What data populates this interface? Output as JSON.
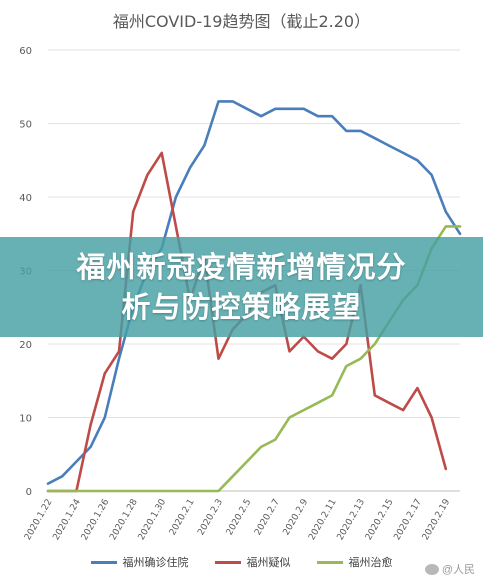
{
  "chart_data": {
    "type": "line",
    "title": "福州COVID-19趋势图（截止2.20）",
    "ylim": [
      0,
      60
    ],
    "yticks": [
      0,
      10,
      20,
      30,
      40,
      50,
      60
    ],
    "xtick_labels": [
      "2020.1.22",
      "2020.1.24",
      "2020.1.26",
      "2020.1.28",
      "2020.1.30",
      "2020.2.1",
      "2020.2.3",
      "2020.2.5",
      "2020.2.7",
      "2020.2.9",
      "2020.2.11",
      "2020.2.13",
      "2020.2.15",
      "2020.2.17",
      "2020.2.19"
    ],
    "x": [
      "2020.1.22",
      "2020.1.23",
      "2020.1.24",
      "2020.1.25",
      "2020.1.26",
      "2020.1.27",
      "2020.1.28",
      "2020.1.29",
      "2020.1.30",
      "2020.1.31",
      "2020.2.1",
      "2020.2.2",
      "2020.2.3",
      "2020.2.4",
      "2020.2.5",
      "2020.2.6",
      "2020.2.7",
      "2020.2.8",
      "2020.2.9",
      "2020.2.10",
      "2020.2.11",
      "2020.2.12",
      "2020.2.13",
      "2020.2.14",
      "2020.2.15",
      "2020.2.16",
      "2020.2.17",
      "2020.2.18",
      "2020.2.19",
      "2020.2.20"
    ],
    "grid": true,
    "legend_position": "bottom",
    "series": [
      {
        "name": "福州确诊住院",
        "color": "#4a7ebb",
        "values": [
          1,
          2,
          4,
          6,
          10,
          18,
          25,
          30,
          33,
          40,
          44,
          47,
          53,
          53,
          52,
          51,
          52,
          52,
          52,
          51,
          51,
          49,
          49,
          48,
          47,
          46,
          45,
          43,
          38,
          35
        ]
      },
      {
        "name": "福州疑似",
        "color": "#be4b48",
        "values": [
          0,
          0,
          0,
          9,
          16,
          19,
          38,
          43,
          46,
          36,
          26,
          32,
          18,
          22,
          24,
          27,
          28,
          19,
          21,
          19,
          18,
          20,
          28,
          13,
          12,
          11,
          14,
          10,
          3,
          null
        ]
      },
      {
        "name": "福州治愈",
        "color": "#98b954",
        "values": [
          0,
          0,
          0,
          0,
          0,
          0,
          0,
          0,
          0,
          0,
          0,
          0,
          0,
          2,
          4,
          6,
          7,
          10,
          11,
          12,
          13,
          17,
          18,
          20,
          23,
          26,
          28,
          33,
          36,
          36
        ]
      }
    ]
  },
  "banner": {
    "line1": "福州新冠疫情新增情况分",
    "line2": "析与防控策略展望"
  },
  "watermark": {
    "text": "@人民"
  }
}
